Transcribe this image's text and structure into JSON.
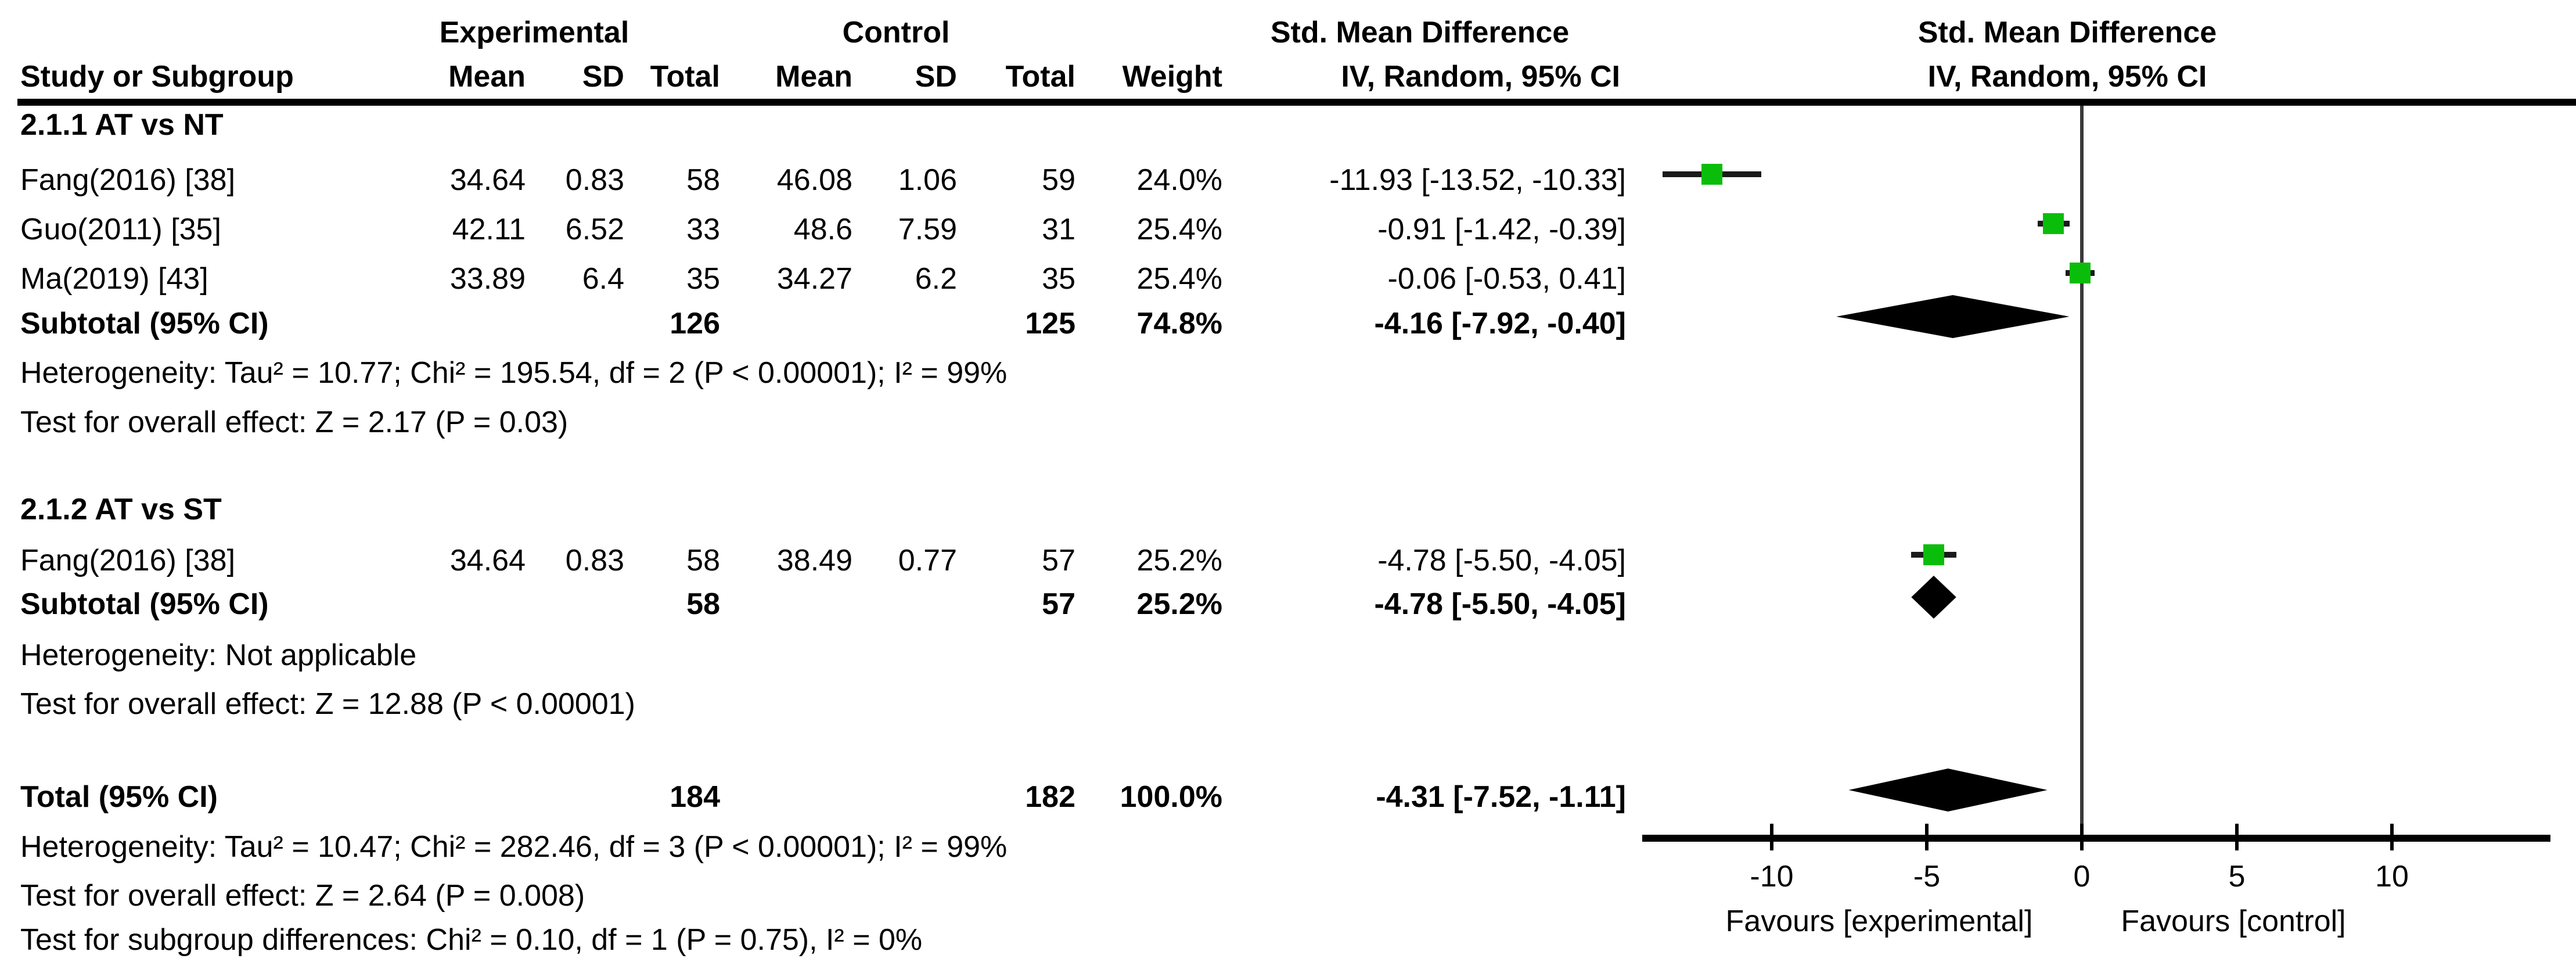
{
  "header": {
    "experimental": "Experimental",
    "control": "Control",
    "cols": {
      "study": "Study or Subgroup",
      "mean": "Mean",
      "sd": "SD",
      "total": "Total",
      "weight": "Weight",
      "method": "IV, Random, 95% CI"
    }
  },
  "chart_data": {
    "type": "forest",
    "effect_measure": "Std. Mean Difference",
    "method": "IV, Random, 95% CI",
    "axis": {
      "ticks": [
        -10,
        -5,
        0,
        5,
        10
      ],
      "tick_labels": [
        "-10",
        "-5",
        "0",
        "5",
        "10"
      ],
      "xmin": -14.2,
      "xmax": 15.1,
      "favours_left": "Favours [experimental]",
      "favours_right": "Favours [control]"
    },
    "subgroups": [
      {
        "title": "2.1.1 AT vs NT",
        "studies": [
          {
            "label": "Fang(2016) [38]",
            "mean_e": "34.64",
            "sd_e": "0.83",
            "total_e": "58",
            "mean_c": "46.08",
            "sd_c": "1.06",
            "total_c": "59",
            "weight": "24.0%",
            "ci_text": "-11.93 [-13.52, -10.33]",
            "smd": -11.93,
            "lo": -13.52,
            "hi": -10.33
          },
          {
            "label": "Guo(2011) [35]",
            "mean_e": "42.11",
            "sd_e": "6.52",
            "total_e": "33",
            "mean_c": "48.6",
            "sd_c": "7.59",
            "total_c": "31",
            "weight": "25.4%",
            "ci_text": "-0.91 [-1.42, -0.39]",
            "smd": -0.91,
            "lo": -1.42,
            "hi": -0.39
          },
          {
            "label": "Ma(2019) [43]",
            "mean_e": "33.89",
            "sd_e": "6.4",
            "total_e": "35",
            "mean_c": "34.27",
            "sd_c": "6.2",
            "total_c": "35",
            "weight": "25.4%",
            "ci_text": "-0.06 [-0.53, 0.41]",
            "smd": -0.06,
            "lo": -0.53,
            "hi": 0.41
          }
        ],
        "subtotal": {
          "label": "Subtotal (95% CI)",
          "total_e": "126",
          "total_c": "125",
          "weight": "74.8%",
          "ci_text": "-4.16 [-7.92, -0.40]",
          "smd": -4.16,
          "lo": -7.92,
          "hi": -0.4
        },
        "heterogeneity": "Heterogeneity: Tau² = 10.77; Chi² = 195.54, df = 2 (P < 0.00001); I² = 99%",
        "overall_effect": "Test for overall effect: Z = 2.17 (P = 0.03)"
      },
      {
        "title": "2.1.2 AT vs ST",
        "studies": [
          {
            "label": "Fang(2016) [38]",
            "mean_e": "34.64",
            "sd_e": "0.83",
            "total_e": "58",
            "mean_c": "38.49",
            "sd_c": "0.77",
            "total_c": "57",
            "weight": "25.2%",
            "ci_text": "-4.78 [-5.50, -4.05]",
            "smd": -4.78,
            "lo": -5.5,
            "hi": -4.05
          }
        ],
        "subtotal": {
          "label": "Subtotal (95% CI)",
          "total_e": "58",
          "total_c": "57",
          "weight": "25.2%",
          "ci_text": "-4.78 [-5.50, -4.05]",
          "smd": -4.78,
          "lo": -5.5,
          "hi": -4.05
        },
        "heterogeneity": "Heterogeneity: Not applicable",
        "overall_effect": "Test for overall effect: Z = 12.88 (P < 0.00001)"
      }
    ],
    "total": {
      "label": "Total (95% CI)",
      "total_e": "184",
      "total_c": "182",
      "weight": "100.0%",
      "ci_text": "-4.31 [-7.52, -1.11]",
      "smd": -4.31,
      "lo": -7.52,
      "hi": -1.11
    },
    "footer": [
      "Heterogeneity: Tau² = 10.47; Chi² = 282.46, df = 3 (P < 0.00001); I² = 99%",
      "Test for overall effect: Z = 2.64 (P = 0.008)",
      "Test for subgroup differences: Chi² = 0.10, df = 1 (P = 0.75), I² = 0%"
    ],
    "colors": {
      "marker_green": "#0bbd0b",
      "whisker": "#1a1a1a",
      "diamond": "#000000",
      "axis": "#000000",
      "zero_line": "#3a3a3a"
    }
  }
}
